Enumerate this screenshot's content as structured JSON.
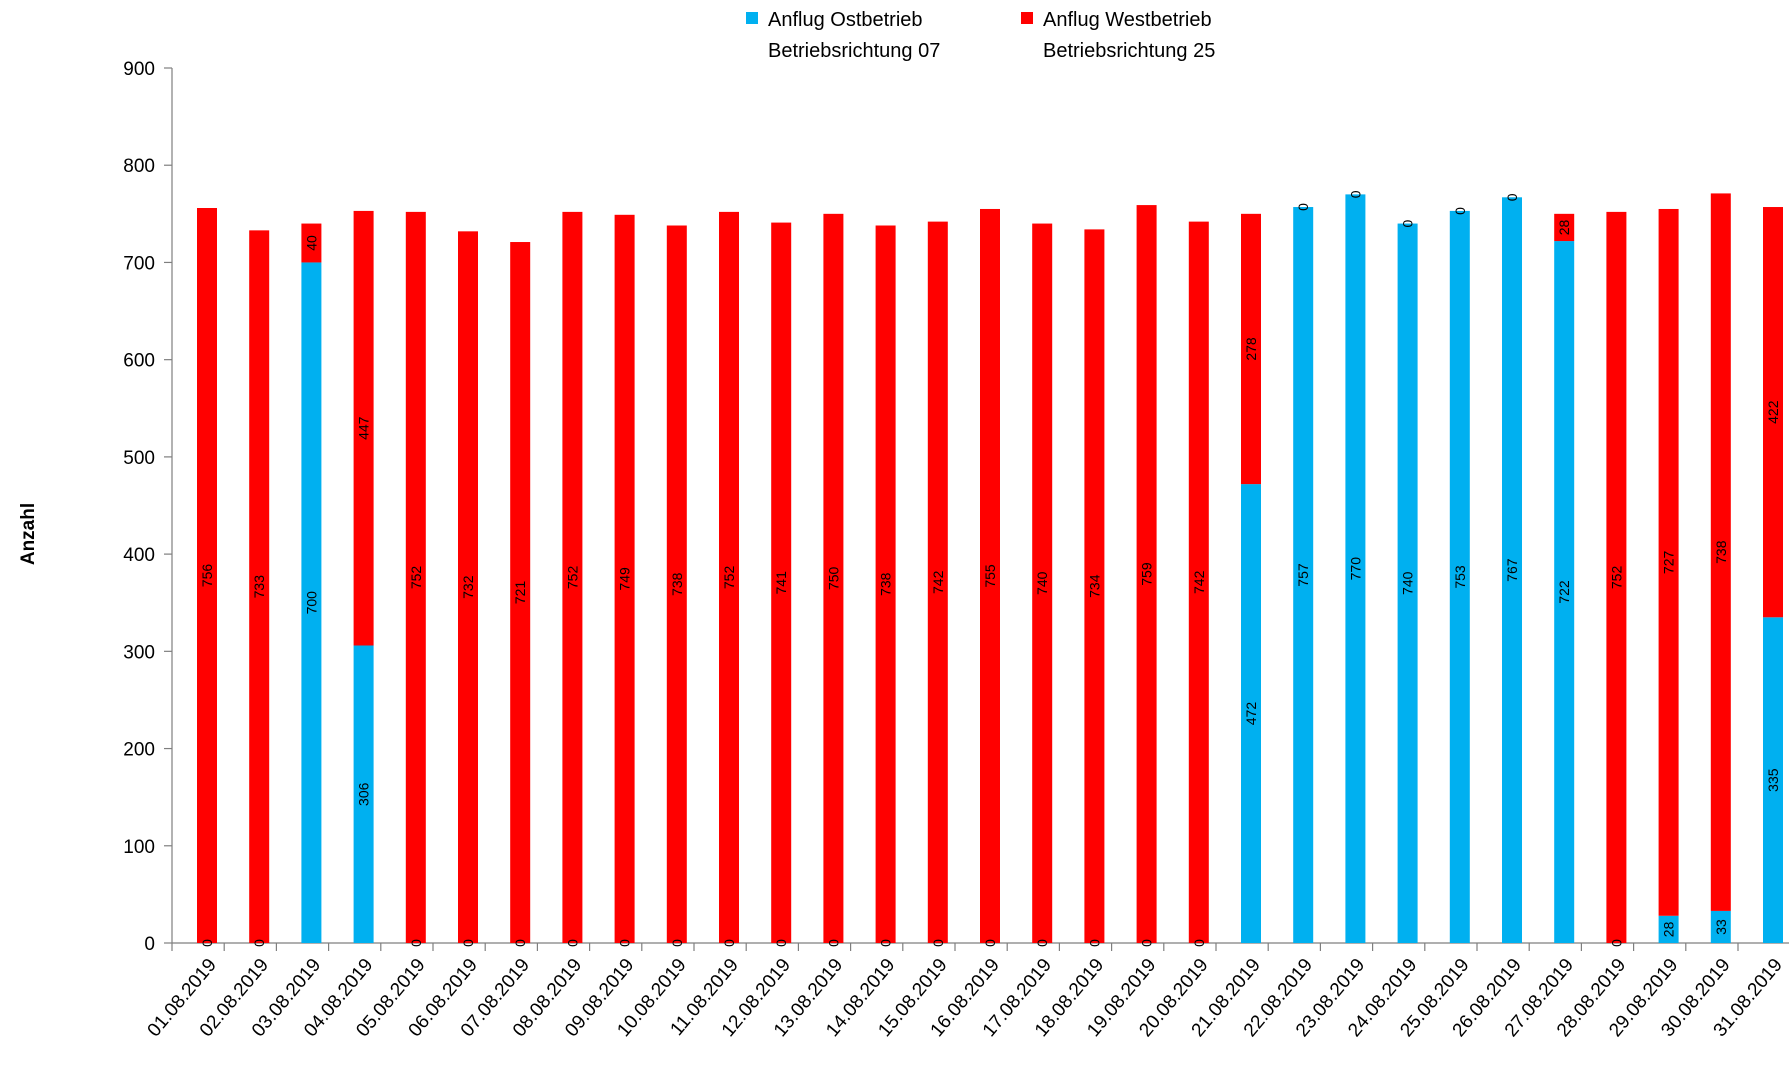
{
  "chart_data": {
    "type": "bar",
    "stacked": true,
    "ylabel": "Anzahl",
    "xlabel": "",
    "title": "",
    "ylim": [
      0,
      900
    ],
    "yticks": [
      0,
      100,
      200,
      300,
      400,
      500,
      600,
      700,
      800,
      900
    ],
    "grid": false,
    "legend_position": "top",
    "categories": [
      "01.08.2019",
      "02.08.2019",
      "03.08.2019",
      "04.08.2019",
      "05.08.2019",
      "06.08.2019",
      "07.08.2019",
      "08.08.2019",
      "09.08.2019",
      "10.08.2019",
      "11.08.2019",
      "12.08.2019",
      "13.08.2019",
      "14.08.2019",
      "15.08.2019",
      "16.08.2019",
      "17.08.2019",
      "18.08.2019",
      "19.08.2019",
      "20.08.2019",
      "21.08.2019",
      "22.08.2019",
      "23.08.2019",
      "24.08.2019",
      "25.08.2019",
      "26.08.2019",
      "27.08.2019",
      "28.08.2019",
      "29.08.2019",
      "30.08.2019",
      "31.08.2019"
    ],
    "series": [
      {
        "name": "Anflug Ostbetrieb Betriebsrichtung 07",
        "legend_lines": [
          "Anflug Ostbetrieb",
          "Betriebsrichtung 07"
        ],
        "color": "#00b0f0",
        "values": [
          0,
          0,
          700,
          306,
          0,
          0,
          0,
          0,
          0,
          0,
          0,
          0,
          0,
          0,
          0,
          0,
          0,
          0,
          0,
          0,
          472,
          757,
          770,
          740,
          753,
          767,
          722,
          0,
          28,
          33,
          335
        ]
      },
      {
        "name": "Anflug Westbetrieb Betriebsrichtung 25",
        "legend_lines": [
          "Anflug Westbetrieb",
          "Betriebsrichtung 25"
        ],
        "color": "#ff0000",
        "values": [
          756,
          733,
          40,
          447,
          752,
          732,
          721,
          752,
          749,
          738,
          752,
          741,
          750,
          738,
          742,
          755,
          740,
          734,
          759,
          742,
          278,
          0,
          0,
          0,
          0,
          0,
          28,
          752,
          727,
          738,
          422
        ]
      }
    ]
  }
}
